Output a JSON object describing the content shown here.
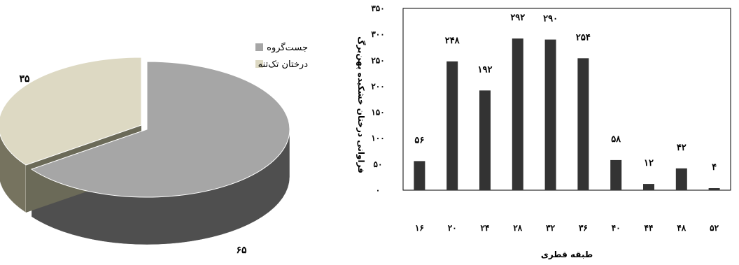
{
  "chart_data": [
    {
      "type": "pie",
      "title": "",
      "legend_placement": "top-right",
      "slices": [
        {
          "name": "جست‌گروه",
          "value": 65,
          "label": "۶۵",
          "color": "#a6a6a6",
          "side_color": "#4f4f4f"
        },
        {
          "name": "درختان تک‌تنه",
          "value": 35,
          "label": "۳۵",
          "color": "#ddd9c3",
          "side_color": "#76735f"
        }
      ]
    },
    {
      "type": "bar",
      "title": "",
      "xlabel": "طبقه قطری",
      "ylabel": "فراوانی درختان خشکیده پهن‌برگ",
      "ylim": [
        0,
        350
      ],
      "grid": false,
      "bar_color": "#333333",
      "categories": [
        "۱۶",
        "۲۰",
        "۲۴",
        "۲۸",
        "۳۲",
        "۳۶",
        "۴۰",
        "۴۴",
        "۴۸",
        "۵۲"
      ],
      "y_ticks": [
        {
          "value": 0,
          "label": "۰"
        },
        {
          "value": 50,
          "label": "۵۰"
        },
        {
          "value": 100,
          "label": "۱۰۰"
        },
        {
          "value": 150,
          "label": "۱۵۰"
        },
        {
          "value": 200,
          "label": "۲۰۰"
        },
        {
          "value": 250,
          "label": "۲۵۰"
        },
        {
          "value": 300,
          "label": "۳۰۰"
        },
        {
          "value": 350,
          "label": "۳۵۰"
        }
      ],
      "values": [
        56,
        248,
        192,
        292,
        290,
        254,
        58,
        12,
        42,
        4
      ],
      "value_labels": [
        "۵۶",
        "۲۴۸",
        "۱۹۲",
        "۲۹۲",
        "۲۹۰",
        "۲۵۴",
        "۵۸",
        "۱۲",
        "۴۲",
        "۴"
      ]
    }
  ]
}
